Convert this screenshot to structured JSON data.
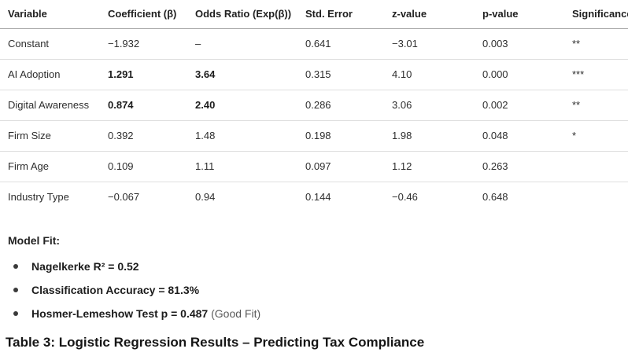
{
  "table": {
    "columns": [
      "Variable",
      "Coefficient (β)",
      "Odds Ratio (Exp(β))",
      "Std. Error",
      "z-value",
      "p-value",
      "Significance"
    ],
    "rows": [
      {
        "variable": "Constant",
        "coefficient": "−1.932",
        "odds_ratio": "–",
        "std_error": "0.641",
        "z_value": "−3.01",
        "p_value": "0.003",
        "significance": "**",
        "emphasis": false
      },
      {
        "variable": "AI Adoption",
        "coefficient": "1.291",
        "odds_ratio": "3.64",
        "std_error": "0.315",
        "z_value": "4.10",
        "p_value": "0.000",
        "significance": "***",
        "emphasis": true
      },
      {
        "variable": "Digital Awareness",
        "coefficient": "0.874",
        "odds_ratio": "2.40",
        "std_error": "0.286",
        "z_value": "3.06",
        "p_value": "0.002",
        "significance": "**",
        "emphasis": true
      },
      {
        "variable": "Firm Size",
        "coefficient": "0.392",
        "odds_ratio": "1.48",
        "std_error": "0.198",
        "z_value": "1.98",
        "p_value": "0.048",
        "significance": "*",
        "emphasis": false
      },
      {
        "variable": "Firm Age",
        "coefficient": "0.109",
        "odds_ratio": "1.11",
        "std_error": "0.097",
        "z_value": "1.12",
        "p_value": "0.263",
        "significance": "",
        "emphasis": false
      },
      {
        "variable": "Industry Type",
        "coefficient": "−0.067",
        "odds_ratio": "0.94",
        "std_error": "0.144",
        "z_value": "−0.46",
        "p_value": "0.648",
        "significance": "",
        "emphasis": false
      }
    ]
  },
  "model_fit": {
    "heading": "Model Fit:",
    "bullets": [
      {
        "bold_text": "Nagelkerke R² = 0.52",
        "normal_text": ""
      },
      {
        "bold_text": "Classification Accuracy = 81.3%",
        "normal_text": ""
      },
      {
        "bold_text": "Hosmer-Lemeshow Test p = 0.487",
        "normal_text": " (Good Fit)"
      }
    ]
  },
  "caption": "Table 3: Logistic Regression Results – Predicting Tax Compliance",
  "colors": {
    "header_border": "#a3a3a3",
    "row_border": "#dedede",
    "text": "#2e2e2e",
    "bold_text": "#1c1c1c",
    "muted_text": "#595959"
  }
}
